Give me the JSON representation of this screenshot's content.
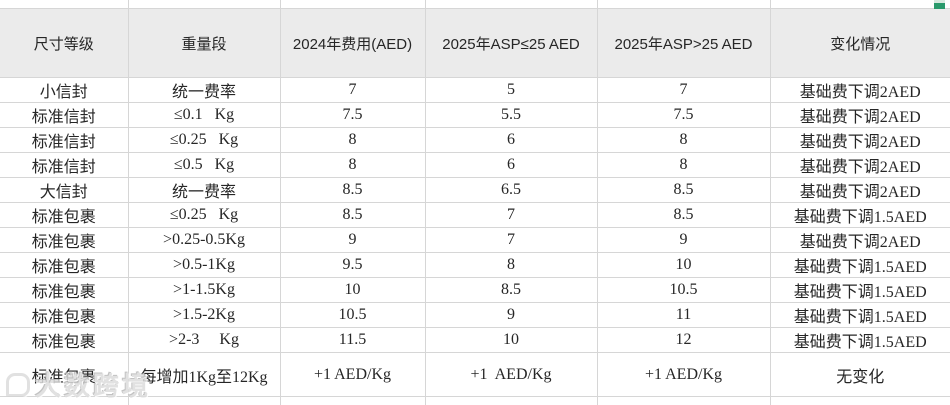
{
  "table": {
    "columns": [
      {
        "label": "尺寸等级",
        "width": 128
      },
      {
        "label": "重量段",
        "width": 152
      },
      {
        "label": "2024年费用(AED)",
        "width": 145
      },
      {
        "label": "2025年ASP≤25 AED",
        "width": 172
      },
      {
        "label": "2025年ASP>25 AED",
        "width": 173
      },
      {
        "label": "变化情况",
        "width": 180
      }
    ],
    "rows": [
      [
        "小信封",
        "统一费率",
        "7",
        "5",
        "7",
        "基础费下调2AED"
      ],
      [
        "标准信封",
        "≤0.1   Kg",
        "7.5",
        "5.5",
        "7.5",
        "基础费下调2AED"
      ],
      [
        "标准信封",
        "≤0.25   Kg",
        "8",
        "6",
        "8",
        "基础费下调2AED"
      ],
      [
        "标准信封",
        "≤0.5   Kg",
        "8",
        "6",
        "8",
        "基础费下调2AED"
      ],
      [
        "大信封",
        "统一费率",
        "8.5",
        "6.5",
        "8.5",
        "基础费下调2AED"
      ],
      [
        "标准包裹",
        "≤0.25   Kg",
        "8.5",
        "7",
        "8.5",
        "基础费下调1.5AED"
      ],
      [
        "标准包裹",
        ">0.25-0.5Kg",
        "9",
        "7",
        "9",
        "基础费下调2AED"
      ],
      [
        "标准包裹",
        ">0.5-1Kg",
        "9.5",
        "8",
        "10",
        "基础费下调1.5AED"
      ],
      [
        "标准包裹",
        ">1-1.5Kg",
        "10",
        "8.5",
        "10.5",
        "基础费下调1.5AED"
      ],
      [
        "标准包裹",
        ">1.5-2Kg",
        "10.5",
        "9",
        "11",
        "基础费下调1.5AED"
      ],
      [
        "标准包裹",
        ">2-3     Kg",
        "11.5",
        "10",
        "12",
        "基础费下调1.5AED"
      ],
      [
        "标准包裹",
        "每增加1Kg至12Kg",
        "+1 AED/Kg",
        "+1  AED/Kg",
        "+1 AED/Kg",
        "无变化"
      ]
    ]
  },
  "watermark": {
    "text": "大数跨境"
  },
  "colors": {
    "header_bg": "#ebebeb",
    "grid_line": "#d6d6d6",
    "text": "#262626",
    "corner_green_dark": "#2a9a6c",
    "corner_green_light": "#d7e9df"
  }
}
